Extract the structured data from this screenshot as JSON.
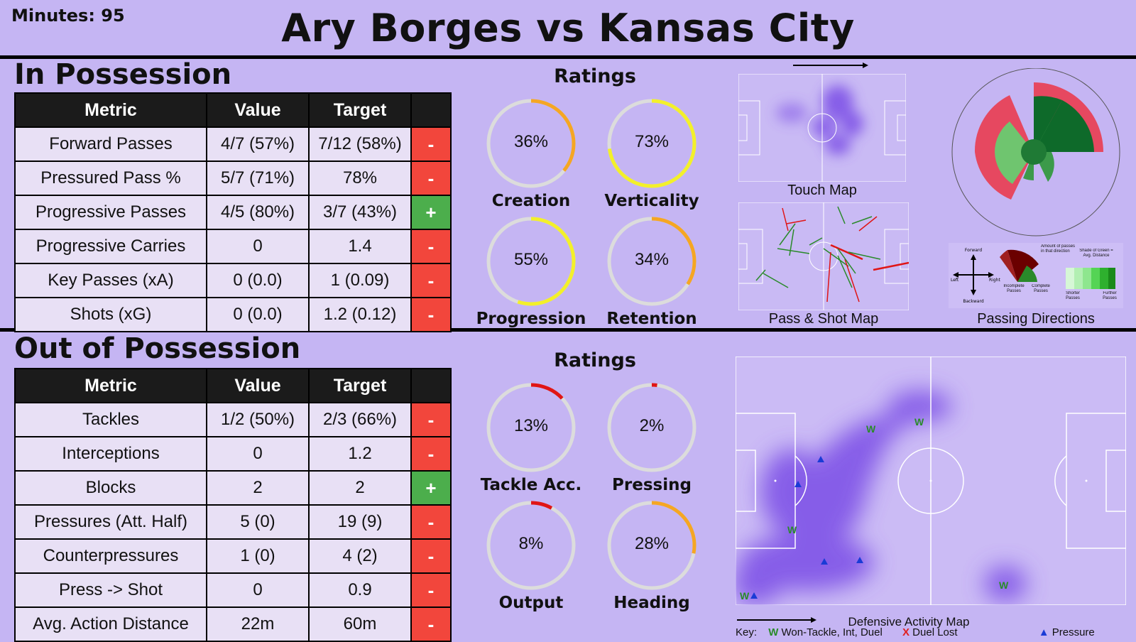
{
  "header": {
    "minutes": "Minutes: 95",
    "title": "Ary Borges vs Kansas City"
  },
  "in_possession": {
    "title": "In Possession",
    "columns": [
      "Metric",
      "Value",
      "Target",
      ""
    ],
    "rows": [
      {
        "metric": "Forward Passes",
        "value": "4/7 (57%)",
        "target": "7/12 (58%)",
        "flag": "-"
      },
      {
        "metric": "Pressured Pass %",
        "value": "5/7 (71%)",
        "target": "78%",
        "flag": "-"
      },
      {
        "metric": "Progressive Passes",
        "value": "4/5 (80%)",
        "target": "3/7 (43%)",
        "flag": "+"
      },
      {
        "metric": "Progressive Carries",
        "value": "0",
        "target": "1.4",
        "flag": "-"
      },
      {
        "metric": "Key Passes (xA)",
        "value": "0 (0.0)",
        "target": "1 (0.09)",
        "flag": "-"
      },
      {
        "metric": "Shots (xG)",
        "value": "0 (0.0)",
        "target": "1.2 (0.12)",
        "flag": "-"
      }
    ],
    "ratings_title": "Ratings",
    "ratings": [
      {
        "label": "Creation",
        "value": 36,
        "text": "36%",
        "color": "#f5a623"
      },
      {
        "label": "Verticality",
        "value": 73,
        "text": "73%",
        "color": "#f3f02a"
      },
      {
        "label": "Progression",
        "value": 55,
        "text": "55%",
        "color": "#f3f02a"
      },
      {
        "label": "Retention",
        "value": 34,
        "text": "34%",
        "color": "#f5a623"
      }
    ],
    "touch_map_caption": "Touch Map",
    "pass_map_caption": "Pass & Shot Map",
    "passing_directions_caption": "Passing Directions",
    "legend": {
      "forward": "Forward",
      "backward": "Backward",
      "left": "Left",
      "right": "Right",
      "amount": "Amount of passes in that direction",
      "incomplete": "Incomplete Passes",
      "complete": "Complete Passes",
      "shade": "Shade of Green = Avg. Distance",
      "shorter": "Shorter Passes",
      "further": "Further Passes"
    }
  },
  "out_possession": {
    "title": "Out of Possession",
    "columns": [
      "Metric",
      "Value",
      "Target",
      ""
    ],
    "rows": [
      {
        "metric": "Tackles",
        "value": "1/2 (50%)",
        "target": "2/3 (66%)",
        "flag": "-"
      },
      {
        "metric": "Interceptions",
        "value": "0",
        "target": "1.2",
        "flag": "-"
      },
      {
        "metric": "Blocks",
        "value": "2",
        "target": "2",
        "flag": "+"
      },
      {
        "metric": "Pressures (Att. Half)",
        "value": "5 (0)",
        "target": "19 (9)",
        "flag": "-"
      },
      {
        "metric": "Counterpressures",
        "value": "1 (0)",
        "target": "4 (2)",
        "flag": "-"
      },
      {
        "metric": "Press -> Shot",
        "value": "0",
        "target": "0.9",
        "flag": "-"
      },
      {
        "metric": "Avg. Action Distance",
        "value": "22m",
        "target": "60m",
        "flag": "-"
      }
    ],
    "ratings_title": "Ratings",
    "ratings": [
      {
        "label": "Tackle Acc.",
        "value": 13,
        "text": "13%",
        "color": "#e01515"
      },
      {
        "label": "Pressing",
        "value": 2,
        "text": "2%",
        "color": "#e01515"
      },
      {
        "label": "Output",
        "value": 8,
        "text": "8%",
        "color": "#e01515"
      },
      {
        "label": "Heading",
        "value": 28,
        "text": "28%",
        "color": "#f5a623"
      }
    ],
    "map_caption": "Defensive Activity Map",
    "key": {
      "label": "Key:",
      "won": "Won-Tackle, Int, Duel",
      "lost": "Duel Lost",
      "pressure": "Pressure",
      "won_symbol": "W",
      "lost_symbol": "X",
      "pressure_symbol": "▲"
    }
  },
  "colors": {
    "minus": "#f2463c",
    "plus": "#4cae4c",
    "heat": "#7a4de6",
    "won": "#2a8a2a",
    "lost": "#e02020",
    "pressure": "#1a3bd6"
  }
}
